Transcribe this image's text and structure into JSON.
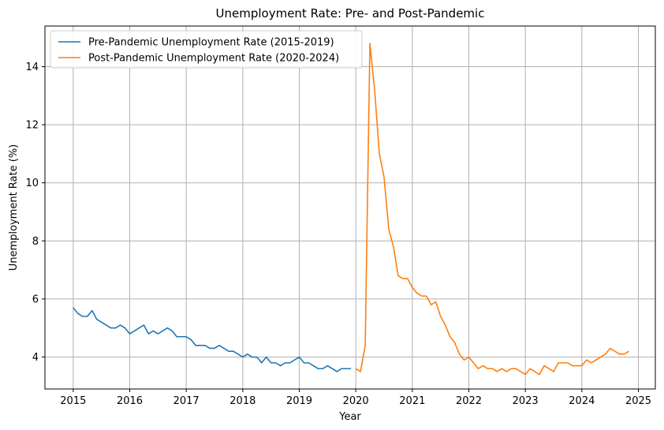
{
  "chart_data": {
    "type": "line",
    "title": "Unemployment Rate: Pre- and Post-Pandemic",
    "xlabel": "Year",
    "ylabel": "Unemployment Rate (%)",
    "xlim": [
      2014.5,
      2025.3
    ],
    "ylim": [
      2.9,
      15.4
    ],
    "xticks": [
      2015,
      2016,
      2017,
      2018,
      2019,
      2020,
      2021,
      2022,
      2023,
      2024,
      2025
    ],
    "yticks": [
      4,
      6,
      8,
      10,
      12,
      14
    ],
    "grid": true,
    "legend_position": "top-left",
    "series": [
      {
        "name": "Pre-Pandemic Unemployment Rate (2015-2019)",
        "color": "#1f77b4",
        "start_year": 2015,
        "values": [
          5.7,
          5.5,
          5.4,
          5.4,
          5.6,
          5.3,
          5.2,
          5.1,
          5.0,
          5.0,
          5.1,
          5.0,
          4.8,
          4.9,
          5.0,
          5.1,
          4.8,
          4.9,
          4.8,
          4.9,
          5.0,
          4.9,
          4.7,
          4.7,
          4.7,
          4.6,
          4.4,
          4.4,
          4.4,
          4.3,
          4.3,
          4.4,
          4.3,
          4.2,
          4.2,
          4.1,
          4.0,
          4.1,
          4.0,
          4.0,
          3.8,
          4.0,
          3.8,
          3.8,
          3.7,
          3.8,
          3.8,
          3.9,
          4.0,
          3.8,
          3.8,
          3.7,
          3.6,
          3.6,
          3.7,
          3.6,
          3.5,
          3.6,
          3.6,
          3.6
        ]
      },
      {
        "name": "Post-Pandemic Unemployment Rate (2020-2024)",
        "color": "#ff7f0e",
        "start_year": 2020,
        "values": [
          3.6,
          3.5,
          4.4,
          14.8,
          13.2,
          11.0,
          10.2,
          8.4,
          7.8,
          6.8,
          6.7,
          6.7,
          6.4,
          6.2,
          6.1,
          6.1,
          5.8,
          5.9,
          5.4,
          5.1,
          4.7,
          4.5,
          4.1,
          3.9,
          4.0,
          3.8,
          3.6,
          3.7,
          3.6,
          3.6,
          3.5,
          3.6,
          3.5,
          3.6,
          3.6,
          3.5,
          3.4,
          3.6,
          3.5,
          3.4,
          3.7,
          3.6,
          3.5,
          3.8,
          3.8,
          3.8,
          3.7,
          3.7,
          3.7,
          3.9,
          3.8,
          3.9,
          4.0,
          4.1,
          4.3,
          4.2,
          4.1,
          4.1,
          4.2
        ]
      }
    ]
  }
}
